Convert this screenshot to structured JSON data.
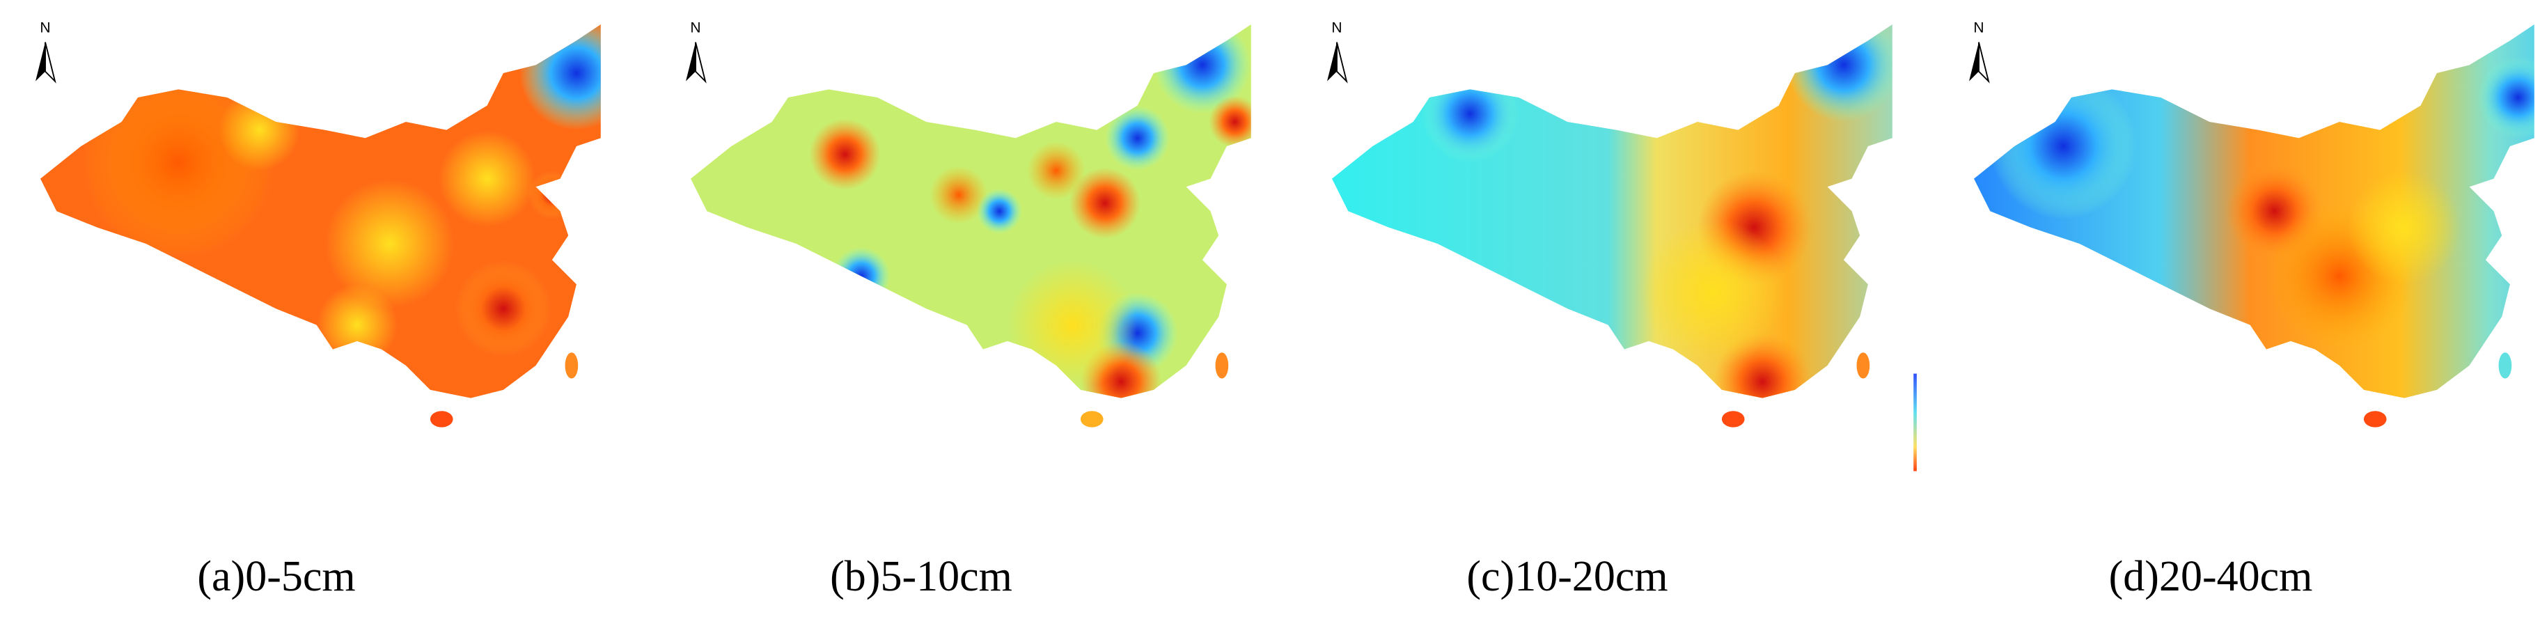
{
  "panels": [
    {
      "north": "N",
      "caption": "(a)0-5cm"
    },
    {
      "north": "N",
      "caption": "(b)5-10cm"
    },
    {
      "north": "N",
      "caption": "(c)10-20cm"
    },
    {
      "north": "N",
      "caption": "(d)20-40cm"
    }
  ]
}
